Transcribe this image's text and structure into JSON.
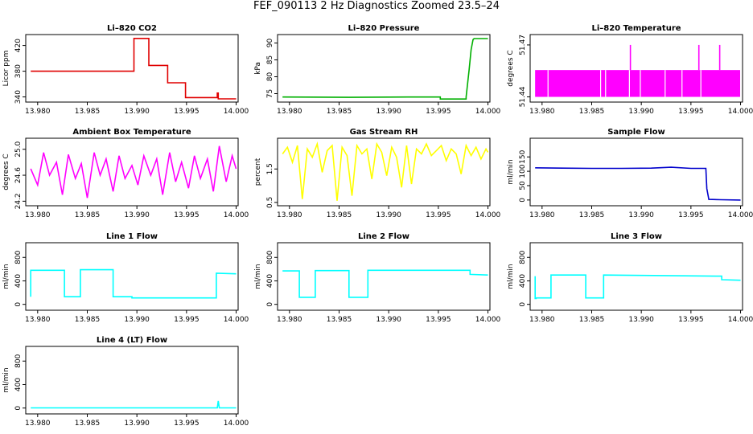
{
  "figure_title": "FEF_090113  2 Hz Diagnostics Zoomed 23.5–24",
  "chart_data": [
    {
      "type": "line",
      "title": "Li–820 CO2",
      "ylabel": "Licor ppm",
      "color": "#e00000",
      "xlim": [
        13.9788,
        14.0002
      ],
      "ylim": [
        332,
        437
      ],
      "xticks": [
        13.98,
        13.985,
        13.99,
        13.995,
        14.0
      ],
      "xtick_labels": [
        "13.980",
        "13.985",
        "13.990",
        "13.995",
        "14.000"
      ],
      "yticks": [
        340,
        380,
        420
      ],
      "ytick_labels": [
        "340",
        "380",
        "420"
      ],
      "series": [
        {
          "x": [
            13.9793,
            13.9897,
            13.9897,
            13.9912,
            13.9912,
            13.9931,
            13.9931,
            13.9949,
            13.9949,
            13.9981,
            13.9981,
            13.9982,
            13.9982,
            14.0
          ],
          "values": [
            380,
            380,
            431,
            431,
            389,
            389,
            362,
            362,
            339,
            339,
            346,
            346,
            337,
            337
          ]
        }
      ]
    },
    {
      "type": "line",
      "title": "Li–820 Pressure",
      "ylabel": "kPa",
      "color": "#00b000",
      "xlim": [
        13.9788,
        14.0002
      ],
      "ylim": [
        72.5,
        92.5
      ],
      "xticks": [
        13.98,
        13.985,
        13.99,
        13.995,
        14.0
      ],
      "xtick_labels": [
        "13.980",
        "13.985",
        "13.990",
        "13.995",
        "14.000"
      ],
      "yticks": [
        75,
        80,
        85,
        90
      ],
      "ytick_labels": [
        "75",
        "80",
        "85",
        "90"
      ],
      "series": [
        {
          "x": [
            13.9793,
            13.986,
            13.992,
            13.9952,
            13.9952,
            13.9978,
            13.9978,
            13.9981,
            13.9983,
            13.9985,
            13.9986,
            14.0
          ],
          "values": [
            74.0,
            73.9,
            74.0,
            74.0,
            73.4,
            73.4,
            74.0,
            82.0,
            88.0,
            91.0,
            91.3,
            91.3
          ]
        }
      ]
    },
    {
      "type": "bar",
      "title": "Li–820 Temperature",
      "ylabel": "degrees C",
      "color": "#ff00ff",
      "xlim": [
        13.9788,
        14.0002
      ],
      "ylim": [
        51.437,
        51.476
      ],
      "xticks": [
        13.98,
        13.985,
        13.99,
        13.995,
        14.0
      ],
      "xtick_labels": [
        "13.980",
        "13.985",
        "13.990",
        "13.995",
        "14.000"
      ],
      "yticks": [
        51.44,
        51.47
      ],
      "ytick_labels": [
        "51.44",
        "51.47"
      ],
      "base": 51.44,
      "level": 51.4555,
      "gaps": [
        13.9806,
        13.9859,
        13.9864,
        13.9888,
        13.9899,
        13.9924,
        13.9941,
        13.996
      ],
      "spikes": [
        {
          "x": 13.9889,
          "value": 51.47
        },
        {
          "x": 13.9958,
          "value": 51.47
        },
        {
          "x": 13.9979,
          "value": 51.47
        }
      ]
    },
    {
      "type": "line",
      "title": "Ambient Box Temperature",
      "ylabel": "degrees C",
      "color": "#ff00ff",
      "xlim": [
        13.9788,
        14.0002
      ],
      "ylim": [
        24.13,
        25.17
      ],
      "xticks": [
        13.98,
        13.985,
        13.99,
        13.995,
        14.0
      ],
      "xtick_labels": [
        "13.980",
        "13.985",
        "13.990",
        "13.995",
        "14.000"
      ],
      "yticks": [
        24.2,
        24.6,
        25.0
      ],
      "ytick_labels": [
        "24.2",
        "24.6",
        "25.0"
      ],
      "series": [
        {
          "x": [
            13.9793,
            13.98,
            13.9806,
            13.9812,
            13.9819,
            13.9825,
            13.9831,
            13.9838,
            13.9844,
            13.985,
            13.9857,
            13.9863,
            13.9869,
            13.9876,
            13.9882,
            13.9888,
            13.9895,
            13.9901,
            13.9907,
            13.9914,
            13.992,
            13.9926,
            13.9933,
            13.9939,
            13.9945,
            13.9952,
            13.9958,
            13.9964,
            13.9971,
            13.9977,
            13.9983,
            13.999,
            13.9996,
            14.0
          ],
          "values": [
            24.7,
            24.45,
            24.95,
            24.6,
            24.8,
            24.3,
            24.92,
            24.55,
            24.78,
            24.25,
            24.95,
            24.6,
            24.85,
            24.35,
            24.9,
            24.55,
            24.75,
            24.45,
            24.9,
            24.6,
            24.85,
            24.3,
            24.95,
            24.5,
            24.8,
            24.4,
            24.9,
            24.55,
            24.85,
            24.35,
            25.05,
            24.5,
            24.9,
            24.7
          ]
        }
      ]
    },
    {
      "type": "line",
      "title": "Gas Stream RH",
      "ylabel": "percent",
      "color": "#ffff00",
      "xlim": [
        13.9788,
        14.0002
      ],
      "ylim": [
        0.4,
        2.42
      ],
      "xticks": [
        13.98,
        13.985,
        13.99,
        13.995,
        14.0
      ],
      "xtick_labels": [
        "13.980",
        "13.985",
        "13.990",
        "13.995",
        "14.000"
      ],
      "yticks": [
        0.5,
        1.5
      ],
      "ytick_labels": [
        "0.5",
        "1.5"
      ],
      "series": [
        {
          "x": [
            13.9793,
            13.9798,
            13.9803,
            13.9808,
            13.9813,
            13.9818,
            13.9823,
            13.9828,
            13.9833,
            13.9838,
            13.9843,
            13.9848,
            13.9853,
            13.9858,
            13.9863,
            13.9868,
            13.9873,
            13.9878,
            13.9883,
            13.9888,
            13.9893,
            13.9898,
            13.9903,
            13.9908,
            13.9913,
            13.9918,
            13.9923,
            13.9928,
            13.9933,
            13.9938,
            13.9943,
            13.9948,
            13.9953,
            13.9958,
            13.9963,
            13.9968,
            13.9973,
            13.9978,
            13.9983,
            13.9988,
            13.9993,
            13.9998,
            14.0
          ],
          "values": [
            1.95,
            2.15,
            1.7,
            2.2,
            0.6,
            2.1,
            1.85,
            2.25,
            1.4,
            2.05,
            2.2,
            0.55,
            2.15,
            1.9,
            0.7,
            2.2,
            1.95,
            2.1,
            1.2,
            2.25,
            2.0,
            1.3,
            2.15,
            1.85,
            0.95,
            2.2,
            1.05,
            2.1,
            1.95,
            2.25,
            1.9,
            2.05,
            2.2,
            1.75,
            2.1,
            1.95,
            1.35,
            2.2,
            1.9,
            2.15,
            1.8,
            2.1,
            2.0
          ]
        }
      ]
    },
    {
      "type": "line",
      "title": "Sample Flow",
      "ylabel": "ml/min",
      "color": "#0000cc",
      "xlim": [
        13.9788,
        14.0002
      ],
      "ylim": [
        -20,
        215
      ],
      "xticks": [
        13.98,
        13.985,
        13.99,
        13.995,
        14.0
      ],
      "xtick_labels": [
        "13.980",
        "13.985",
        "13.990",
        "13.995",
        "14.000"
      ],
      "yticks": [
        0,
        50,
        100,
        150
      ],
      "ytick_labels": [
        "0",
        "50",
        "100",
        "150"
      ],
      "series": [
        {
          "x": [
            13.9793,
            13.982,
            13.985,
            13.988,
            13.991,
            13.993,
            13.995,
            13.9965,
            13.9966,
            13.9968,
            13.998,
            14.0
          ],
          "values": [
            112,
            111,
            110,
            110,
            111,
            114,
            110,
            110,
            40,
            2,
            1,
            0
          ]
        }
      ]
    },
    {
      "type": "line",
      "title": "Line 1 Flow",
      "ylabel": "ml/min",
      "color": "#00ffff",
      "xlim": [
        13.9788,
        14.0002
      ],
      "ylim": [
        -100,
        1050
      ],
      "xticks": [
        13.98,
        13.985,
        13.99,
        13.995,
        14.0
      ],
      "xtick_labels": [
        "13.980",
        "13.985",
        "13.990",
        "13.995",
        "14.000"
      ],
      "yticks": [
        0,
        400,
        800
      ],
      "ytick_labels": [
        "0",
        "400",
        "800"
      ],
      "series": [
        {
          "x": [
            13.9793,
            13.9793,
            13.9827,
            13.9827,
            13.9843,
            13.9843,
            13.9876,
            13.9876,
            13.9895,
            13.9895,
            13.998,
            13.998,
            14.0
          ],
          "values": [
            130,
            580,
            580,
            130,
            130,
            590,
            590,
            130,
            130,
            110,
            110,
            530,
            520
          ]
        }
      ]
    },
    {
      "type": "line",
      "title": "Line 2 Flow",
      "ylabel": "ml/min",
      "color": "#00ffff",
      "xlim": [
        13.9788,
        14.0002
      ],
      "ylim": [
        -100,
        1050
      ],
      "xticks": [
        13.98,
        13.985,
        13.99,
        13.995,
        14.0
      ],
      "xtick_labels": [
        "13.980",
        "13.985",
        "13.990",
        "13.995",
        "14.000"
      ],
      "yticks": [
        0,
        400,
        800
      ],
      "ytick_labels": [
        "0",
        "400",
        "800"
      ],
      "series": [
        {
          "x": [
            13.9793,
            13.981,
            13.981,
            13.9826,
            13.9826,
            13.986,
            13.986,
            13.9879,
            13.9879,
            13.9982,
            13.9982,
            14.0
          ],
          "values": [
            570,
            570,
            120,
            120,
            575,
            575,
            120,
            120,
            580,
            580,
            510,
            500
          ]
        }
      ]
    },
    {
      "type": "line",
      "title": "Line 3 Flow",
      "ylabel": "ml/min",
      "color": "#00ffff",
      "xlim": [
        13.9788,
        14.0002
      ],
      "ylim": [
        -100,
        1050
      ],
      "xticks": [
        13.98,
        13.985,
        13.99,
        13.995,
        14.0
      ],
      "xtick_labels": [
        "13.980",
        "13.985",
        "13.990",
        "13.995",
        "14.000"
      ],
      "yticks": [
        0,
        400,
        800
      ],
      "ytick_labels": [
        "0",
        "400",
        "800"
      ],
      "series": [
        {
          "x": [
            13.9793,
            13.9793,
            13.9794,
            13.9794,
            13.9809,
            13.9809,
            13.9844,
            13.9844,
            13.9862,
            13.9862,
            13.9981,
            13.9981,
            14.0
          ],
          "values": [
            480,
            100,
            100,
            110,
            110,
            500,
            500,
            110,
            110,
            500,
            480,
            420,
            410
          ]
        }
      ]
    },
    {
      "type": "line",
      "title": "Line 4 (LT) Flow",
      "ylabel": "ml/min",
      "color": "#00ffff",
      "xlim": [
        13.9788,
        14.0002
      ],
      "ylim": [
        -100,
        1050
      ],
      "xticks": [
        13.98,
        13.985,
        13.99,
        13.995,
        14.0
      ],
      "xtick_labels": [
        "13.980",
        "13.985",
        "13.990",
        "13.995",
        "14.000"
      ],
      "yticks": [
        0,
        400,
        800
      ],
      "ytick_labels": [
        "0",
        "400",
        "800"
      ],
      "series": [
        {
          "x": [
            13.9793,
            13.9981,
            13.9982,
            13.9983,
            14.0
          ],
          "values": [
            2,
            2,
            120,
            2,
            2
          ]
        }
      ]
    }
  ]
}
